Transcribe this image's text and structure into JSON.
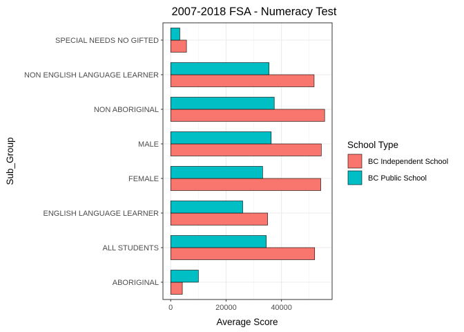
{
  "chart_data": {
    "type": "bar",
    "orientation": "horizontal",
    "title": "2007-2018 FSA - Numeracy Test",
    "xlabel": "Average Score",
    "ylabel": "Sub_Group",
    "xlim": [
      -2800,
      58300
    ],
    "xticks": [
      0,
      20000,
      40000
    ],
    "xtick_labels": [
      "0",
      "20000",
      "40000"
    ],
    "grid": true,
    "legend_position": "right",
    "legend_title": "School Type",
    "categories": [
      "ABORIGINAL",
      "ALL STUDENTS",
      "ENGLISH LANGUAGE LEARNER",
      "FEMALE",
      "MALE",
      "NON ABORIGINAL",
      "NON ENGLISH LANGUAGE LEARNER",
      "SPECIAL NEEDS NO GIFTED"
    ],
    "series": [
      {
        "name": "BC Independent School",
        "color": "#F8766D",
        "values": [
          4200,
          52000,
          35000,
          54200,
          54400,
          55600,
          51800,
          5700
        ]
      },
      {
        "name": "BC Public School",
        "color": "#00BFC4",
        "values": [
          10000,
          34500,
          26000,
          33200,
          36300,
          37400,
          35500,
          3300
        ]
      }
    ]
  }
}
